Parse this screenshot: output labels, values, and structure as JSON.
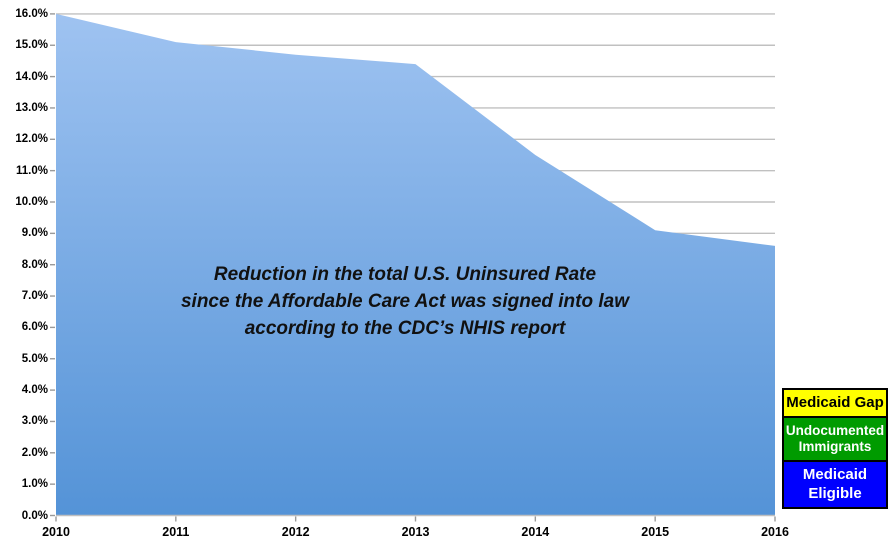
{
  "chart_data": {
    "type": "area",
    "title_lines": [
      "Reduction in the total U.S. Uninsured Rate",
      "since the Affordable Care Act was signed into law",
      "according to the CDC’s NHIS report"
    ],
    "x": [
      2010,
      2011,
      2012,
      2013,
      2014,
      2015,
      2016
    ],
    "x_labels": [
      "2010",
      "2011",
      "2012",
      "2013",
      "2014",
      "2015",
      "2016"
    ],
    "series": [
      {
        "name": "U.S. uninsured rate",
        "values": [
          16.0,
          15.1,
          14.7,
          14.4,
          11.5,
          9.1,
          8.6
        ]
      }
    ],
    "ylim": [
      0,
      16
    ],
    "ytick_step": 1.0,
    "yticks": [
      "0.0%",
      "1.0%",
      "2.0%",
      "3.0%",
      "4.0%",
      "5.0%",
      "6.0%",
      "7.0%",
      "8.0%",
      "9.0%",
      "10.0%",
      "11.0%",
      "12.0%",
      "13.0%",
      "14.0%",
      "15.0%",
      "16.0%"
    ],
    "grid": true,
    "legend_position": "bottom-right",
    "legend": [
      {
        "label": "Medicaid Gap",
        "bg": "#FFFF00",
        "text_color": "#000000"
      },
      {
        "label": "Undocumented Immigrants",
        "bg": "#009B00",
        "text_color": "#FFFFFF"
      },
      {
        "label": "Medicaid Eligible",
        "bg": "#0000FE",
        "text_color": "#FFFFFF"
      }
    ],
    "colors": {
      "area_top": "#9FC3F1",
      "area_bottom": "#5493D7",
      "gridline": "#C0C0C0",
      "axis_line": "#BFBFBF",
      "tick": "#9A9A9A",
      "label": "#000000"
    }
  }
}
